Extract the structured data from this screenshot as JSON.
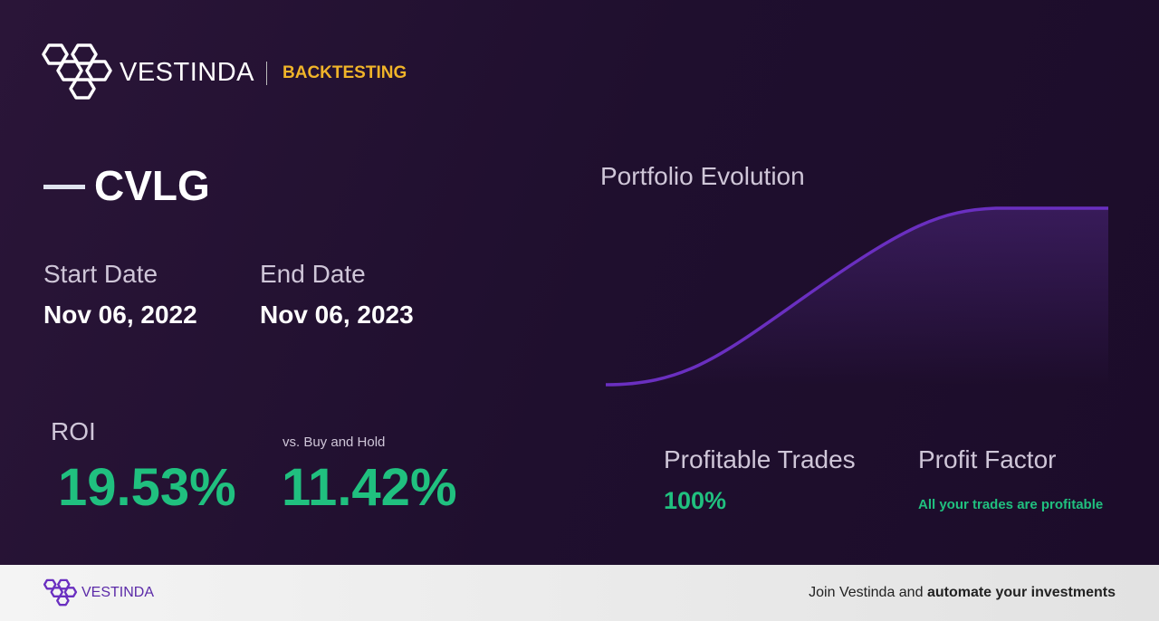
{
  "header": {
    "brand": "VESTINDA",
    "section": "BACKTESTING"
  },
  "asset": {
    "ticker": "CVLG"
  },
  "dates": {
    "start_label": "Start Date",
    "start": "Nov 06, 2022",
    "end_label": "End Date",
    "end": "Nov 06, 2023"
  },
  "roi": {
    "label": "ROI",
    "value": "19.53%",
    "compare_label": "vs. Buy and Hold",
    "compare_value": "11.42%"
  },
  "chart": {
    "title": "Portfolio Evolution"
  },
  "stats": {
    "trades_label": "Profitable Trades",
    "trades_value": "100%",
    "factor_label": "Profit Factor",
    "factor_value": "All your trades are profitable"
  },
  "footer": {
    "brand": "VESTINDA",
    "cta_prefix": "Join Vestinda and",
    "cta_bold": "automate your investments"
  }
}
